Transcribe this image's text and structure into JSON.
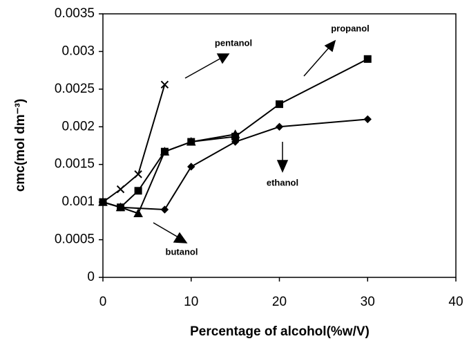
{
  "chart_data": {
    "type": "line",
    "x_label": "Percentage of alcohol(%w/V)",
    "y_label": "cmc(mol dm⁻³)",
    "xlim": [
      0,
      40
    ],
    "xticks": [
      0,
      10,
      20,
      30,
      40
    ],
    "ylim": [
      0,
      0.0035
    ],
    "yticks": [
      0,
      0.0005,
      0.001,
      0.0015,
      0.002,
      0.0025,
      0.003,
      0.0035
    ],
    "grid": false,
    "series": [
      {
        "name": "ethanol",
        "color": "#000000",
        "marker": "diamond",
        "x": [
          0,
          2,
          7,
          10,
          15,
          20,
          30
        ],
        "values": [
          0.001,
          0.00093,
          0.0009,
          0.00147,
          0.0018,
          0.002,
          0.0021
        ]
      },
      {
        "name": "propanol",
        "color": "#000000",
        "marker": "square",
        "x": [
          0,
          2,
          4,
          7,
          10,
          15,
          20,
          30
        ],
        "values": [
          0.001,
          0.00093,
          0.00115,
          0.00167,
          0.0018,
          0.00187,
          0.0023,
          0.0029
        ]
      },
      {
        "name": "butanol",
        "color": "#000000",
        "marker": "triangle",
        "x": [
          0,
          2,
          4,
          7,
          10,
          15
        ],
        "values": [
          0.001,
          0.00093,
          0.00085,
          0.00167,
          0.0018,
          0.0019
        ]
      },
      {
        "name": "pentanol",
        "color": "#000000",
        "marker": "x",
        "x": [
          0,
          2,
          4,
          7
        ],
        "values": [
          0.001,
          0.00117,
          0.00137,
          0.00256
        ]
      }
    ]
  }
}
